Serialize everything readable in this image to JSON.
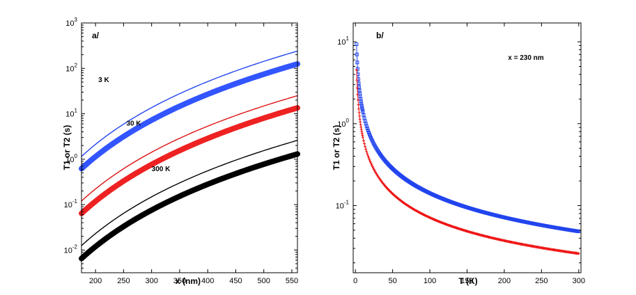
{
  "chart_data": [
    {
      "type": "line",
      "panel_label": "a/",
      "xlabel": "x (nm)",
      "ylabel": "T1 or T2  (s)",
      "xlim": [
        175,
        560
      ],
      "ylim_log10": [
        -2.5,
        3
      ],
      "yscale": "log",
      "x_ticks": [
        200,
        250,
        300,
        350,
        400,
        450,
        500,
        550
      ],
      "x_tick_labels": [
        "200",
        "250",
        "300",
        "350",
        "400",
        "450",
        "500",
        "550"
      ],
      "y_ticks": [
        {
          "base": "10",
          "exp": "-2",
          "value": 0.01
        },
        {
          "base": "10",
          "exp": "-1",
          "value": 0.1
        },
        {
          "base": "10",
          "exp": "0",
          "value": 1
        },
        {
          "base": "10",
          "exp": "1",
          "value": 10
        },
        {
          "base": "10",
          "exp": "2",
          "value": 100
        },
        {
          "base": "10",
          "exp": "3",
          "value": 1000
        }
      ],
      "annotations": [
        {
          "text": "3 K",
          "at": [
            205,
            50
          ]
        },
        {
          "text": "30 K",
          "at": [
            255,
            5.5
          ]
        },
        {
          "text": "300 K",
          "at": [
            300,
            0.55
          ]
        }
      ],
      "series": [
        {
          "name": "T1 3 K",
          "color": "#2244ee",
          "style": "thin",
          "x_start": 175,
          "x_end": 560,
          "y_start": 1.15,
          "y_end": 240
        },
        {
          "name": "T2 3 K",
          "color": "#3355ff",
          "style": "thick",
          "x_start": 175,
          "x_end": 560,
          "y_start": 0.62,
          "y_end": 125
        },
        {
          "name": "T1 30 K",
          "color": "#dd1111",
          "style": "thin",
          "x_start": 175,
          "x_end": 560,
          "y_start": 0.12,
          "y_end": 25
        },
        {
          "name": "T2 30 K",
          "color": "#ee2222",
          "style": "thick",
          "x_start": 175,
          "x_end": 560,
          "y_start": 0.064,
          "y_end": 13.5
        },
        {
          "name": "T1 300 K",
          "color": "#000000",
          "style": "thin",
          "x_start": 175,
          "x_end": 560,
          "y_start": 0.0125,
          "y_end": 2.6
        },
        {
          "name": "T2 300 K",
          "color": "#000000",
          "style": "thick",
          "x_start": 175,
          "x_end": 560,
          "y_start": 0.0065,
          "y_end": 1.3
        }
      ]
    },
    {
      "type": "scatter",
      "panel_label": "b/",
      "xlabel": "T (K)",
      "ylabel": "T1 or T2  (s)",
      "xlim": [
        -3,
        303
      ],
      "ylim_log10": [
        -1.82,
        1.23
      ],
      "yscale": "log",
      "x_ticks": [
        0,
        50,
        100,
        150,
        200,
        250,
        300
      ],
      "x_tick_labels": [
        "0",
        "50",
        "100",
        "150",
        "200",
        "250",
        "300"
      ],
      "y_ticks": [
        {
          "base": "10",
          "exp": "-1",
          "value": 0.1
        },
        {
          "base": "10",
          "exp": "0",
          "value": 1
        },
        {
          "base": "10",
          "exp": "1",
          "value": 10
        }
      ],
      "annotations": [
        {
          "text": "x = 230 nm",
          "at": [
            205,
            6.0
          ]
        }
      ],
      "series": [
        {
          "name": "T1",
          "color": "#2244ee",
          "marker": "square",
          "model": "a/T + b",
          "a": 14.0,
          "b": 0.0017,
          "t_min": 1.5,
          "t_max": 300
        },
        {
          "name": "T2",
          "color": "#ee1111",
          "marker": "plus",
          "model": "a/T + b",
          "a": 6.8,
          "b": 0.0033,
          "t_min": 1.5,
          "t_max": 300
        }
      ]
    }
  ]
}
